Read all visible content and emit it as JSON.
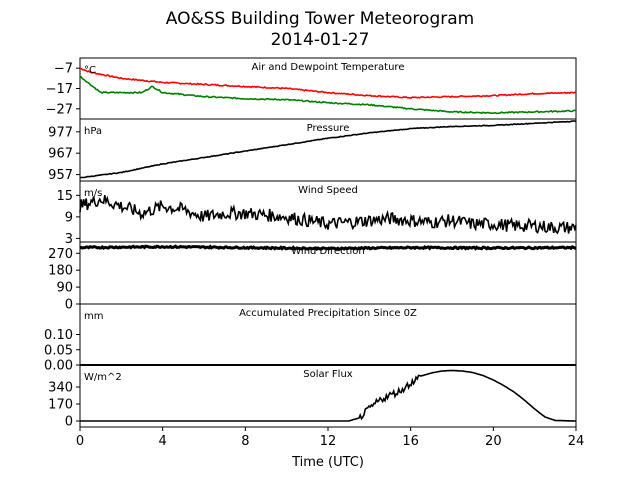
{
  "figure": {
    "title": "AO&SS Building Tower Meteorogram",
    "date": "2014-01-27",
    "xlabel": "Time (UTC)",
    "x_ticks": [
      "0",
      "4",
      "8",
      "12",
      "16",
      "20",
      "24"
    ],
    "colors": {
      "temperature": "#ff0000",
      "dewpoint": "#008000",
      "line": "#000000"
    }
  },
  "chart_data": [
    {
      "type": "line",
      "title": "Air and Dewpoint Temperature",
      "unit": "°C",
      "xlim": [
        0,
        24
      ],
      "ylim": [
        -32,
        -2
      ],
      "y_ticks": [
        -7,
        -17,
        -27
      ],
      "x": [
        0,
        0.5,
        1,
        2,
        3,
        3.5,
        4,
        6,
        8,
        10,
        12,
        14,
        16,
        18,
        20,
        22,
        24
      ],
      "series": [
        {
          "values": [
            -7,
            -9,
            -10,
            -12,
            -13,
            -13.5,
            -14,
            -15,
            -16,
            -17,
            -19,
            -20.5,
            -21.5,
            -21,
            -20.5,
            -19.5,
            -19
          ]
        },
        {
          "values": [
            -11,
            -15,
            -19,
            -19,
            -19,
            -16,
            -19,
            -21,
            -22,
            -22.5,
            -24,
            -25,
            -27,
            -28.5,
            -29,
            -28.5,
            -28
          ]
        }
      ]
    },
    {
      "type": "line",
      "title": "Pressure",
      "unit": "hPa",
      "xlim": [
        0,
        24
      ],
      "ylim": [
        954,
        983
      ],
      "y_ticks": [
        957,
        967,
        977
      ],
      "x": [
        0,
        2,
        4,
        6,
        8,
        10,
        12,
        14,
        16,
        18,
        20,
        22,
        24
      ],
      "series": [
        {
          "values": [
            955.5,
            958,
            962,
            965,
            968,
            971,
            974,
            976.5,
            978.5,
            979.5,
            980,
            981,
            982
          ]
        }
      ]
    },
    {
      "type": "line",
      "title": "Wind Speed",
      "unit": "m/s",
      "xlim": [
        0,
        24
      ],
      "ylim": [
        2,
        19
      ],
      "y_ticks": [
        3,
        9,
        15
      ],
      "x": [
        0,
        1,
        2,
        3,
        4,
        5,
        6,
        7,
        8,
        9,
        10,
        11,
        12,
        13,
        14,
        15,
        16,
        17,
        18,
        19,
        20,
        21,
        22,
        23,
        24
      ],
      "series": [
        {
          "values": [
            12,
            14,
            12,
            10,
            12,
            11,
            9,
            10,
            10,
            9.5,
            9,
            8,
            7,
            7.5,
            8,
            8.5,
            8,
            7.5,
            8,
            7,
            7,
            6.5,
            6.5,
            6,
            6
          ]
        }
      ]
    },
    {
      "type": "line",
      "title": "Wind Direction",
      "unit": "",
      "xlim": [
        0,
        24
      ],
      "ylim": [
        0,
        330
      ],
      "y_ticks": [
        0,
        90,
        180,
        270
      ],
      "x": [
        0,
        4,
        8,
        12,
        16,
        20,
        24
      ],
      "series": [
        {
          "values": [
            300,
            305,
            300,
            295,
            300,
            298,
            300
          ]
        }
      ]
    },
    {
      "type": "line",
      "title": "Accumulated Precipitation Since 0Z",
      "unit": "mm",
      "xlim": [
        0,
        24
      ],
      "ylim": [
        0,
        0.2
      ],
      "y_ticks": [
        "0.00",
        "0.05",
        "0.10"
      ],
      "x": [
        0,
        24
      ],
      "series": [
        {
          "values": [
            0,
            0
          ]
        }
      ]
    },
    {
      "type": "line",
      "title": "Solar Flux",
      "unit": "W/m^2",
      "xlim": [
        0,
        24
      ],
      "ylim": [
        -60,
        560
      ],
      "y_ticks": [
        0,
        170,
        340
      ],
      "x": [
        0,
        13,
        13.5,
        14,
        14.5,
        15,
        15.5,
        16,
        16.5,
        17,
        17.5,
        18,
        18.5,
        19,
        19.5,
        20,
        20.5,
        21,
        21.5,
        22,
        22.5,
        23,
        24
      ],
      "series": [
        {
          "values": [
            0,
            0,
            30,
            120,
            210,
            260,
            300,
            380,
            450,
            480,
            500,
            505,
            500,
            485,
            455,
            410,
            355,
            290,
            210,
            120,
            40,
            5,
            0
          ]
        }
      ]
    }
  ]
}
